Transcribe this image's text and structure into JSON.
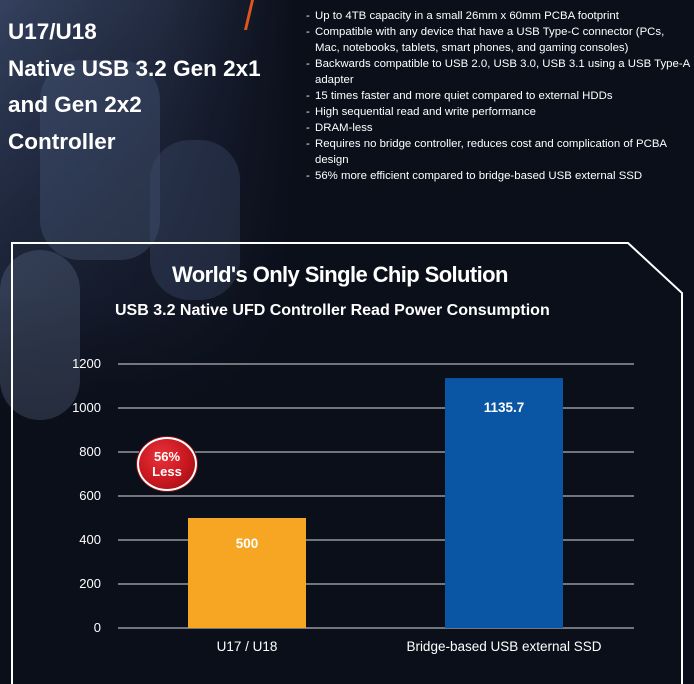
{
  "headline": [
    "U17/U18",
    "Native USB 3.2 Gen 2x1",
    "and Gen 2x2",
    "Controller"
  ],
  "features": [
    "Up to 4TB capacity in a small 26mm x 60mm PCBA footprint",
    "Compatible with any device that have a USB Type-C connector (PCs, Mac, notebooks, tablets, smart phones, and gaming consoles)",
    "Backwards compatible to USB 2.0, USB 3.0, USB 3.1 using a USB Type-A adapter",
    "15 times faster and more quiet compared to external HDDs",
    "High sequential read and write performance",
    "DRAM-less",
    "Requires no bridge controller, reduces cost and complication of PCBA design",
    "56% more efficient compared to bridge-based USB external SSD"
  ],
  "badge": {
    "line1": "56%",
    "line2": "Less"
  },
  "colors": {
    "background": "#0b0f1a",
    "accent": "#e0541f",
    "bar_u17": "#f6a623",
    "bar_bridge": "#0b56a4",
    "grid": "#ffffff",
    "badge": "#c8171f"
  },
  "chart_data": {
    "type": "bar",
    "title": "World's Only Single Chip Solution",
    "subtitle": "USB 3.2 Native UFD Controller Read Power Consumption",
    "categories": [
      "U17 / U18",
      "Bridge-based USB external SSD"
    ],
    "values": [
      500,
      1135.7
    ],
    "value_labels": [
      "500",
      "1135.7"
    ],
    "bar_colors": [
      "#f6a623",
      "#0b56a4"
    ],
    "yticks": [
      0,
      200,
      400,
      600,
      800,
      1000,
      1200
    ],
    "ylim": [
      0,
      1200
    ],
    "xlabel": "",
    "ylabel": "",
    "grid": true,
    "legend": "none"
  }
}
